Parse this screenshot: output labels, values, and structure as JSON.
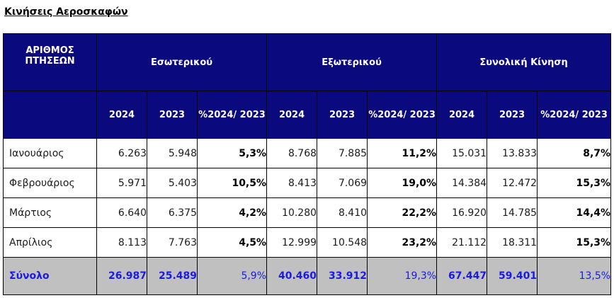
{
  "title": "Κινήσεις Αεροσκαφών",
  "header": {
    "row_label": "ΑΡΙΘΜΟΣ ΠΤΗΣΕΩΝ",
    "groups": [
      "Εσωτερικού",
      "Εξωτερικού",
      "Συνολική Κίνηση"
    ],
    "sub": [
      "2024",
      "2023",
      "%2024/ 2023"
    ]
  },
  "rows": [
    {
      "month": "Ιανουάριος",
      "values": [
        "6.263",
        "5.948",
        "5,3%",
        "8.768",
        "7.885",
        "11,2%",
        "15.031",
        "13.833",
        "8,7%"
      ]
    },
    {
      "month": "Φεβρουάριος",
      "values": [
        "5.971",
        "5.403",
        "10,5%",
        "8.413",
        "7.069",
        "19,0%",
        "14.384",
        "12.472",
        "15,3%"
      ]
    },
    {
      "month": "Μάρτιος",
      "values": [
        "6.640",
        "6.375",
        "4,2%",
        "10.280",
        "8.410",
        "22,2%",
        "16.920",
        "14.785",
        "14,4%"
      ]
    },
    {
      "month": "Απρίλιος",
      "values": [
        "8.113",
        "7.763",
        "4,5%",
        "12.999",
        "10.548",
        "23,2%",
        "21.112",
        "18.311",
        "15,3%"
      ]
    }
  ],
  "total": {
    "month": "Σύνολο",
    "values": [
      "26.987",
      "25.489",
      "5,9%",
      "40.460",
      "33.912",
      "19,3%",
      "67.447",
      "59.401",
      "13,5%"
    ]
  },
  "colors": {
    "header_bg": "#0a0a7e",
    "header_text": "#ffffff",
    "total_bg": "#c0c0c0",
    "total_text": "#1a1ae0"
  }
}
